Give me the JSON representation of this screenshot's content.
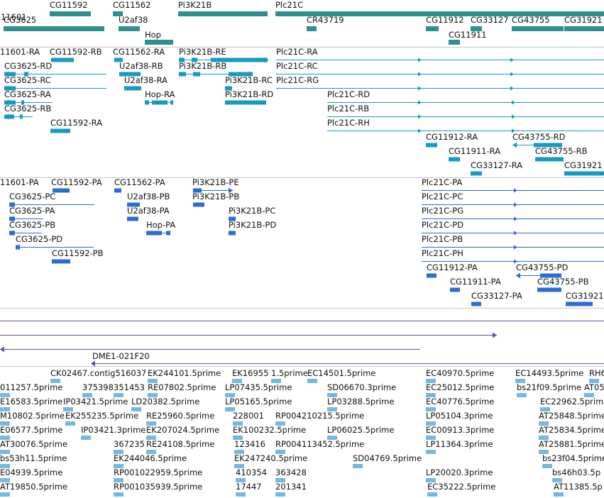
{
  "colors": {
    "gene": "#2f8f8f",
    "mrna": "#169bc0",
    "protein": "#2d6cd1",
    "contig": "#6a4ea6",
    "est": "#79b8de",
    "divider": "#c8c8c8"
  },
  "genes": [
    {
      "label": "11601",
      "name": "gene-CG11601"
    },
    {
      "label": "CG11592",
      "name": "gene-CG11592"
    },
    {
      "label": "CG11562",
      "name": "gene-CG11562"
    },
    {
      "label": "Pi3K21B",
      "name": "gene-Pi3K21B"
    },
    {
      "label": "Plc21C",
      "name": "gene-Plc21C"
    },
    {
      "label": "CG3625",
      "name": "gene-CG3625"
    },
    {
      "label": "U2af38",
      "name": "gene-U2af38"
    },
    {
      "label": "CR43719",
      "name": "gene-CR43719"
    },
    {
      "label": "CG11912",
      "name": "gene-CG11912"
    },
    {
      "label": "CG33127",
      "name": "gene-CG33127"
    },
    {
      "label": "CG43755",
      "name": "gene-CG43755"
    },
    {
      "label": "CG31921",
      "name": "gene-CG31921"
    },
    {
      "label": "Hop",
      "name": "gene-Hop"
    },
    {
      "label": "CG11911",
      "name": "gene-CG11911"
    }
  ],
  "transcripts": [
    {
      "label": "11601-RA"
    },
    {
      "label": "CG11592-RB"
    },
    {
      "label": "CG11562-RA"
    },
    {
      "label": "Pi3K21B-RE"
    },
    {
      "label": "Plc21C-RA"
    },
    {
      "label": "CG3625-RD"
    },
    {
      "label": "U2af38-RB"
    },
    {
      "label": "Pi3K21B-RB"
    },
    {
      "label": "Plc21C-RC"
    },
    {
      "label": "CG3625-RC"
    },
    {
      "label": "U2af38-RA"
    },
    {
      "label": "Pi3K21B-RC"
    },
    {
      "label": "Plc21C-RG"
    },
    {
      "label": "CG3625-RA"
    },
    {
      "label": "Hop-RA"
    },
    {
      "label": "Pi3K21B-RD"
    },
    {
      "label": "Plc21C-RD"
    },
    {
      "label": "CG3625-RB"
    },
    {
      "label": "Plc21C-RB"
    },
    {
      "label": "CG11592-RA"
    },
    {
      "label": "Plc21C-RH"
    },
    {
      "label": "CG11912-RA"
    },
    {
      "label": "CG43755-RD"
    },
    {
      "label": "CG11911-RA"
    },
    {
      "label": "CG43755-RB"
    },
    {
      "label": "CG33127-RA"
    },
    {
      "label": "CG31921"
    }
  ],
  "proteins": [
    {
      "label": "11601-PA"
    },
    {
      "label": "CG11592-PA"
    },
    {
      "label": "CG11562-PA"
    },
    {
      "label": "Pi3K21B-PE"
    },
    {
      "label": "Plc21C-PA"
    },
    {
      "label": "CG3625-PC"
    },
    {
      "label": "U2af38-PB"
    },
    {
      "label": "Pi3K21B-PB"
    },
    {
      "label": "Plc21C-PC"
    },
    {
      "label": "CG3625-PA"
    },
    {
      "label": "U2af38-PA"
    },
    {
      "label": "Pi3K21B-PC"
    },
    {
      "label": "Plc21C-PG"
    },
    {
      "label": "CG3625-PB"
    },
    {
      "label": "Hop-PA"
    },
    {
      "label": "Pi3K21B-PD"
    },
    {
      "label": "Plc21C-PD"
    },
    {
      "label": "CG3625-PD"
    },
    {
      "label": "Plc21C-PB"
    },
    {
      "label": "CG11592-PB"
    },
    {
      "label": "Plc21C-PH"
    },
    {
      "label": "CG11912-PA"
    },
    {
      "label": "CG43755-PD"
    },
    {
      "label": "CG11911-PA"
    },
    {
      "label": "CG43755-PB"
    },
    {
      "label": "CG33127-PA"
    },
    {
      "label": "CG31921"
    }
  ],
  "contigs": [
    {
      "label": "DME1-021F20"
    }
  ],
  "ests": [
    "CK02467.contig516037",
    "EK244101.5prime",
    "EK16955",
    "1.5prime",
    "EC14501.5prime",
    "EC40970.5prime",
    "EC14493.5prime",
    "RH6",
    "011257.5prime",
    "375398",
    "351453",
    "RE07802.5prime",
    "LP07435.5prime",
    "SD06670.3prime",
    "EC25012.5prime",
    "bs21f09.5prime",
    "AT05",
    "E16583.5prime",
    "IP03421.5prime",
    "LD20382.5prime",
    "LP05165.5prime",
    "LP03288.5prime",
    "EC40776.5prime",
    "EC22962.5prime",
    "M10802.5prime",
    "EK255235.5prime",
    "RE25960.5prime",
    "228001",
    "RP004210215.5prime",
    "LP05104.3prime",
    "AT25848.5prime",
    "E06577.5prime",
    "IP03421.3prime",
    "EK207024.5prime",
    "EK100232.5prime",
    "LP06025.5prime",
    "EC00913.3prime",
    "AT25834.5prime",
    "AT30076.5prime",
    "367235",
    "RE24108.5prime",
    "123416",
    "RP004113452.5prime",
    "LP11364.3prime",
    "AT25881.5prime",
    "bs53h11.5prime",
    "EK244046.5prime",
    "EK247240.5prime",
    "SD04769.5prime",
    "bs23f04.5prime",
    "E04939.5prime",
    "RP001022959.5prime",
    "410354",
    "363428",
    "LP20020.3prime",
    "bs46h03.5p",
    "AT19850.5prime",
    "RP001035939.5prime",
    "17447",
    "201341",
    "EC35222.5prime",
    "AT11385.5p"
  ]
}
